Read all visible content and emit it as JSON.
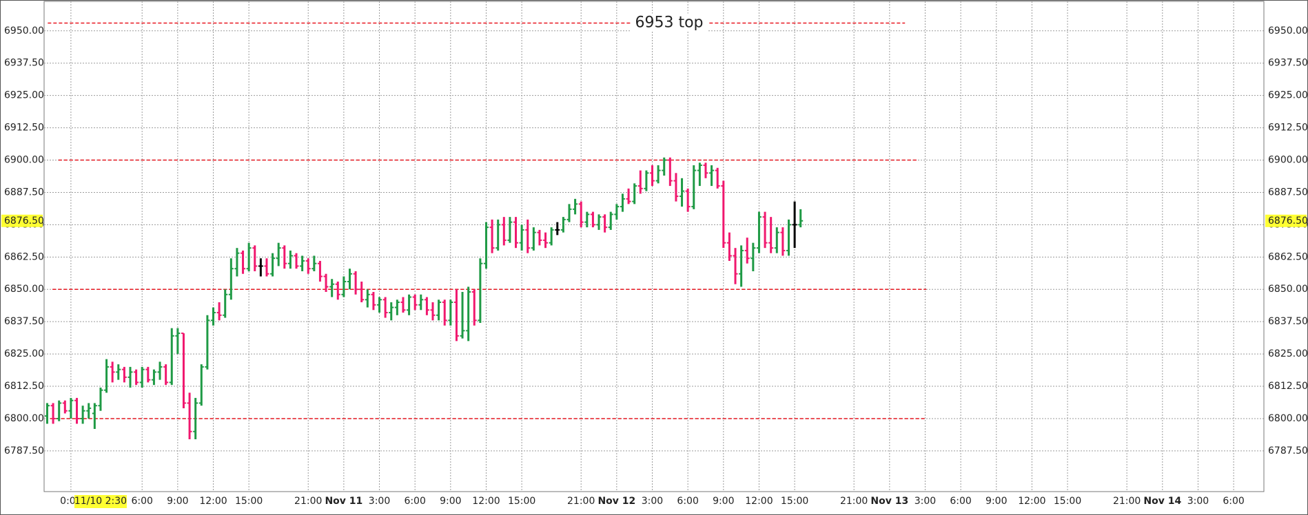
{
  "chart_data": {
    "type": "ohlc",
    "x": [
      -4,
      -3,
      -2,
      -1,
      0,
      1,
      2,
      3,
      4,
      5,
      6,
      7,
      8,
      9,
      10,
      11,
      12,
      13,
      14,
      15,
      16,
      17,
      18,
      19,
      20,
      21,
      22,
      23,
      24,
      25,
      26,
      27,
      28,
      29,
      30,
      31,
      32,
      33,
      34,
      35,
      36,
      37,
      38,
      39,
      40,
      41,
      42,
      43,
      44,
      45,
      46,
      47,
      48,
      49,
      50,
      51,
      52,
      53,
      54,
      55,
      56,
      57,
      58,
      59,
      60,
      61,
      62,
      63,
      64,
      65,
      66,
      67,
      68,
      69,
      70,
      71,
      72,
      73,
      74,
      75,
      76,
      77,
      78,
      79,
      80,
      81,
      82,
      83,
      84,
      85,
      86,
      87,
      88,
      89,
      90,
      91,
      92,
      93,
      94,
      95,
      96,
      97,
      98,
      99,
      100,
      101,
      102,
      103,
      104,
      105,
      106,
      107,
      108,
      109,
      110,
      111,
      112,
      113,
      114,
      115,
      116,
      117,
      118,
      119,
      120,
      121,
      122,
      123
    ],
    "open": [
      6801,
      6805,
      6800,
      6806,
      6803,
      6807,
      6800,
      6803,
      6802,
      6805,
      6811,
      6820,
      6818,
      6819,
      6816,
      6818,
      6814,
      6819,
      6815,
      6818,
      6820,
      6814,
      6832,
      6833,
      6806,
      6795,
      6806,
      6820,
      6838,
      6841,
      6840,
      6848,
      6858,
      6864,
      6858,
      6866,
      6859,
      6859,
      6856,
      6862,
      6866,
      6860,
      6863,
      6859,
      6861,
      6858,
      6860,
      6855,
      6851,
      6852,
      6848,
      6853,
      6856,
      6850,
      6846,
      6848,
      6844,
      6846,
      6841,
      6843,
      6845,
      6842,
      6847,
      6844,
      6846,
      6842,
      6840,
      6845,
      6838,
      6845,
      6832,
      6834,
      6849,
      6838,
      6860,
      6874,
      6866,
      6875,
      6869,
      6876,
      6868,
      6873,
      6866,
      6872,
      6869,
      6868,
      6873,
      6873,
      6877,
      6881,
      6883,
      6876,
      6879,
      6875,
      6878,
      6874,
      6879,
      6882,
      6885,
      6884,
      6890,
      6889,
      6895,
      6892,
      6896,
      6900,
      6892,
      6886,
      6888,
      6882,
      6896,
      6898,
      6895,
      6896,
      6890,
      6868,
      6863,
      6856,
      6865,
      6862,
      6866,
      6878,
      6868,
      6866,
      6872,
      6865,
      6875,
      6875
    ],
    "high": [
      6806,
      6806,
      6807,
      6807,
      6808,
      6808,
      6805,
      6806,
      6806,
      6812,
      6823,
      6822,
      6821,
      6820,
      6820,
      6819,
      6820,
      6820,
      6819,
      6822,
      6821,
      6835,
      6835,
      6833,
      6810,
      6808,
      6821,
      6840,
      6843,
      6845,
      6850,
      6862,
      6866,
      6865,
      6868,
      6867,
      6862,
      6862,
      6864,
      6868,
      6867,
      6865,
      6864,
      6863,
      6862,
      6863,
      6861,
      6856,
      6854,
      6853,
      6855,
      6858,
      6857,
      6853,
      6850,
      6849,
      6847,
      6847,
      6845,
      6846,
      6847,
      6848,
      6848,
      6848,
      6847,
      6845,
      6846,
      6846,
      6846,
      6850,
      6849,
      6851,
      6850,
      6862,
      6876,
      6877,
      6877,
      6878,
      6878,
      6878,
      6875,
      6877,
      6874,
      6873,
      6872,
      6874,
      6876,
      6878,
      6883,
      6885,
      6884,
      6880,
      6880,
      6879,
      6879,
      6880,
      6883,
      6887,
      6889,
      6891,
      6896,
      6896,
      6898,
      6898,
      6901,
      6901,
      6895,
      6893,
      6889,
      6898,
      6899,
      6899,
      6898,
      6897,
      6892,
      6872,
      6866,
      6867,
      6870,
      6868,
      6880,
      6880,
      6878,
      6874,
      6874,
      6877,
      6884,
      6881
    ],
    "low": [
      6798,
      6798,
      6799,
      6802,
      6800,
      6798,
      6798,
      6800,
      6796,
      6803,
      6810,
      6814,
      6815,
      6814,
      6812,
      6813,
      6812,
      6814,
      6813,
      6815,
      6813,
      6813,
      6825,
      6804,
      6792,
      6792,
      6805,
      6819,
      6836,
      6838,
      6839,
      6846,
      6855,
      6856,
      6857,
      6857,
      6855,
      6855,
      6855,
      6859,
      6858,
      6858,
      6858,
      6857,
      6856,
      6857,
      6853,
      6849,
      6847,
      6846,
      6847,
      6850,
      6848,
      6845,
      6843,
      6842,
      6841,
      6839,
      6838,
      6840,
      6841,
      6840,
      6842,
      6842,
      6840,
      6838,
      6838,
      6836,
      6836,
      6830,
      6831,
      6830,
      6836,
      6837,
      6858,
      6864,
      6865,
      6867,
      6868,
      6866,
      6865,
      6864,
      6865,
      6867,
      6866,
      6867,
      6871,
      6872,
      6876,
      6879,
      6874,
      6874,
      6874,
      6873,
      6872,
      6873,
      6877,
      6880,
      6883,
      6883,
      6887,
      6888,
      6890,
      6891,
      6894,
      6890,
      6884,
      6882,
      6880,
      6881,
      6890,
      6893,
      6890,
      6889,
      6866,
      6861,
      6852,
      6851,
      6860,
      6857,
      6864,
      6866,
      6864,
      6864,
      6863,
      6863,
      6866,
      6874
    ],
    "close": [
      6805,
      6800,
      6806,
      6803,
      6807,
      6800,
      6803,
      6804,
      6805,
      6811,
      6820,
      6818,
      6819,
      6816,
      6818,
      6814,
      6819,
      6815,
      6818,
      6820,
      6814,
      6832,
      6833,
      6806,
      6795,
      6806,
      6820,
      6838,
      6841,
      6840,
      6848,
      6858,
      6864,
      6858,
      6866,
      6859,
      6859,
      6856,
      6862,
      6866,
      6860,
      6863,
      6859,
      6861,
      6858,
      6860,
      6855,
      6851,
      6852,
      6848,
      6853,
      6856,
      6850,
      6846,
      6848,
      6844,
      6846,
      6841,
      6843,
      6845,
      6842,
      6847,
      6844,
      6846,
      6842,
      6840,
      6845,
      6838,
      6845,
      6832,
      6834,
      6849,
      6838,
      6860,
      6874,
      6866,
      6875,
      6869,
      6876,
      6868,
      6873,
      6866,
      6872,
      6869,
      6868,
      6873,
      6873,
      6877,
      6881,
      6883,
      6876,
      6879,
      6875,
      6878,
      6874,
      6879,
      6882,
      6885,
      6884,
      6890,
      6889,
      6895,
      6892,
      6896,
      6900,
      6892,
      6886,
      6888,
      6882,
      6896,
      6898,
      6895,
      6896,
      6890,
      6868,
      6863,
      6856,
      6865,
      6862,
      6866,
      6878,
      6868,
      6866,
      6872,
      6865,
      6875,
      6875,
      6876.5
    ],
    "up_color": "#1f9a45",
    "down_color": "#f0186e",
    "flat_color": "#000000",
    "xlim": [
      -4.52,
      201.1
    ],
    "ylim": [
      6771.76,
      6961.4
    ],
    "yticks": [
      {
        "value": 6787.5,
        "label": "6787.50"
      },
      {
        "value": 6800,
        "label": "6800.00"
      },
      {
        "value": 6812.5,
        "label": "6812.50"
      },
      {
        "value": 6825,
        "label": "6825.00"
      },
      {
        "value": 6837.5,
        "label": "6837.50"
      },
      {
        "value": 6850,
        "label": "6850.00"
      },
      {
        "value": 6862.5,
        "label": "6862.50"
      },
      {
        "value": 6875,
        "label": "6875.00"
      },
      {
        "value": 6887.5,
        "label": "6887.50"
      },
      {
        "value": 6900,
        "label": "6900.00"
      },
      {
        "value": 6912.5,
        "label": "6912.50"
      },
      {
        "value": 6925,
        "label": "6925.00"
      },
      {
        "value": 6937.5,
        "label": "6937.50"
      },
      {
        "value": 6950,
        "label": "6950.00"
      }
    ],
    "xticks": [
      {
        "value": 0,
        "label": "0:00"
      },
      {
        "value": 12,
        "label": "6:00"
      },
      {
        "value": 18,
        "label": "9:00"
      },
      {
        "value": 24,
        "label": "12:00"
      },
      {
        "value": 30,
        "label": "15:00"
      },
      {
        "value": 40,
        "label": "21:00"
      },
      {
        "value": 46,
        "label": "Nov 11",
        "bold": true
      },
      {
        "value": 52,
        "label": "3:00"
      },
      {
        "value": 58,
        "label": "6:00"
      },
      {
        "value": 64,
        "label": "9:00"
      },
      {
        "value": 70,
        "label": "12:00"
      },
      {
        "value": 76,
        "label": "15:00"
      },
      {
        "value": 86,
        "label": "21:00"
      },
      {
        "value": 92,
        "label": "Nov 12",
        "bold": true
      },
      {
        "value": 98,
        "label": "3:00"
      },
      {
        "value": 104,
        "label": "6:00"
      },
      {
        "value": 110,
        "label": "9:00"
      },
      {
        "value": 116,
        "label": "12:00"
      },
      {
        "value": 122,
        "label": "15:00"
      },
      {
        "value": 132,
        "label": "21:00"
      },
      {
        "value": 138,
        "label": "Nov 13",
        "bold": true
      },
      {
        "value": 144,
        "label": "3:00"
      },
      {
        "value": 150,
        "label": "6:00"
      },
      {
        "value": 156,
        "label": "9:00"
      },
      {
        "value": 162,
        "label": "12:00"
      },
      {
        "value": 168,
        "label": "15:00"
      },
      {
        "value": 178,
        "label": "21:00"
      },
      {
        "value": 184,
        "label": "Nov 14",
        "bold": true
      },
      {
        "value": 190,
        "label": "3:00"
      },
      {
        "value": 196,
        "label": "6:00"
      }
    ],
    "grid": true,
    "lines": [
      {
        "value": 6953,
        "label": "6953 top",
        "x": [
          -3.9,
          140.6
        ]
      },
      {
        "value": 6900,
        "x": [
          -2.1,
          142.7
        ]
      },
      {
        "value": 6850,
        "x": [
          -3.1,
          144.2
        ]
      },
      {
        "value": 6800,
        "x": [
          -3.5,
          143.9
        ]
      }
    ],
    "line_color": "#e8141e",
    "price_marker": {
      "value": 6876.5,
      "label": "6876.50"
    },
    "cursor": {
      "value": 5,
      "label": "11/10 2:30"
    },
    "marker_color": "#ffff33"
  }
}
